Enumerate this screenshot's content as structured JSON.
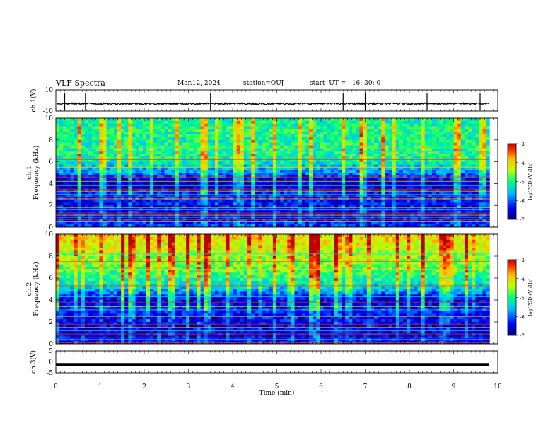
{
  "header": {
    "title": "VLF Spectra",
    "date": "Mar.12, 2024",
    "station": "station=OUJ",
    "start": "start  UT =   16: 30: 0"
  },
  "chart_data": [
    {
      "type": "line",
      "panel": "ch1-waveform",
      "ylabel": "ch.1(V)",
      "ylim": [
        -10,
        10
      ],
      "ytick_labels": [
        "10",
        "-10"
      ],
      "x": [
        0,
        1,
        2,
        3,
        4,
        5,
        6,
        7,
        8,
        9,
        9.8
      ],
      "series": [
        {
          "values": [
            -3,
            -3,
            -3,
            -3,
            -3,
            -3,
            -3,
            -3,
            -3,
            -3,
            -3
          ]
        }
      ],
      "spikes_min": [
        0.2,
        0.67,
        3.5,
        6.5,
        7.0,
        8.4,
        9.6
      ],
      "color": "#000000"
    },
    {
      "type": "heatmap",
      "panel": "ch1-spectrogram",
      "ylabel": "ch.1  Frequency  (kHz)",
      "ylim": [
        0,
        10
      ],
      "ytick_labels": [
        "0",
        "2",
        "4",
        "6",
        "8",
        "10"
      ],
      "colorbar": {
        "label": "log(PSD)(V²/Hz)",
        "range": [
          -7,
          -3
        ],
        "tick_labels": [
          "-3",
          "-4",
          "-5",
          "-6",
          "-7"
        ]
      },
      "bands_khz": [
        0.1,
        0.3,
        0.5,
        0.7,
        0.9,
        1.1,
        1.3,
        1.6,
        1.8,
        2.1,
        2.3,
        2.6,
        2.8,
        3.0,
        3.3,
        3.5,
        3.8,
        4.2,
        4.6,
        5.0,
        5.5,
        6.2,
        6.9,
        7.2
      ],
      "levels_by_freq": [
        -6.2,
        -6.5,
        -6.4,
        -6.3,
        -6.8,
        -5.9,
        -5.2,
        -5.0,
        -5.1,
        -5.0,
        -5.2
      ]
    },
    {
      "type": "heatmap",
      "panel": "ch2-spectrogram",
      "ylabel": "ch.2  Frequency  (kHz)",
      "ylim": [
        0,
        10
      ],
      "ytick_labels": [
        "0",
        "2",
        "4",
        "6",
        "8",
        "10"
      ],
      "colorbar": {
        "label": "log(PSD)(V²/Hz)",
        "range": [
          -7,
          -3
        ],
        "tick_labels": [
          "-3",
          "-4",
          "-5",
          "-6",
          "-7"
        ]
      },
      "bands_khz": [
        0.1,
        0.4,
        0.6,
        0.9,
        1.2,
        1.5,
        1.8,
        2.1,
        2.5,
        2.8,
        3.1,
        3.4,
        3.8,
        4.3,
        4.8,
        5.3,
        6.0,
        6.8,
        7.5,
        8.2
      ],
      "levels_by_freq": [
        -6.4,
        -6.6,
        -6.5,
        -6.3,
        -6.6,
        -5.6,
        -5.0,
        -4.7,
        -4.5,
        -4.2,
        -4.0
      ]
    },
    {
      "type": "line",
      "panel": "ch3-waveform",
      "ylabel": "ch.3(V)",
      "ylim": [
        -5,
        5
      ],
      "ytick_labels": [
        "5",
        "0",
        "-5"
      ],
      "x": [
        0,
        9.8
      ],
      "series": [
        {
          "values": [
            -1.2,
            -1.2
          ]
        }
      ],
      "color": "#000000"
    }
  ],
  "xaxis": {
    "label": "Time  (min)",
    "xlim": [
      0,
      10
    ],
    "tick_labels": [
      "0",
      "1",
      "2",
      "3",
      "4",
      "5",
      "6",
      "7",
      "8",
      "9",
      "10"
    ]
  }
}
